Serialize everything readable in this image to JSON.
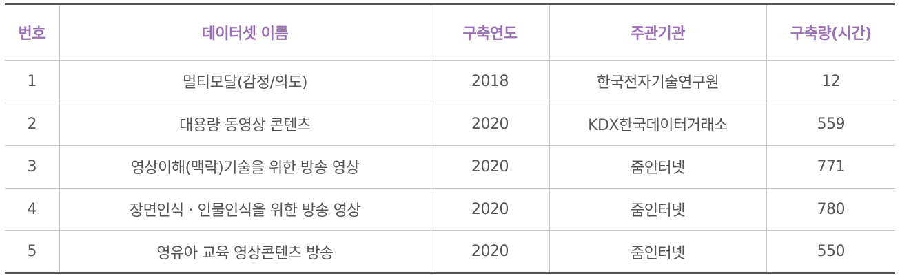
{
  "table": {
    "headers": [
      "번호",
      "데이터셋 이름",
      "구축연도",
      "주관기관",
      "구축량(시간)"
    ],
    "rows": [
      [
        "1",
        "멀티모달(감정/의도)",
        "2018",
        "한국전자기술연구원",
        "12"
      ],
      [
        "2",
        "대용량 동영상 콘텐츠",
        "2020",
        "KDX한국데이터거래소",
        "559"
      ],
      [
        "3",
        "영상이해(맥락)기술을 위한 방송 영상",
        "2020",
        "줌인터넷",
        "771"
      ],
      [
        "4",
        "장면인식ㆍ인물인식을 위한 방송 영상",
        "2020",
        "줌인터넷",
        "780"
      ],
      [
        "5",
        "영유아 교육 영상콘텐츠 방송",
        "2020",
        "줌인터넷",
        "550"
      ]
    ]
  },
  "colors": {
    "header_text": "#9b6fb3",
    "body_text": "#555555",
    "rule": "#555555",
    "grid": "#c9c9c9"
  }
}
